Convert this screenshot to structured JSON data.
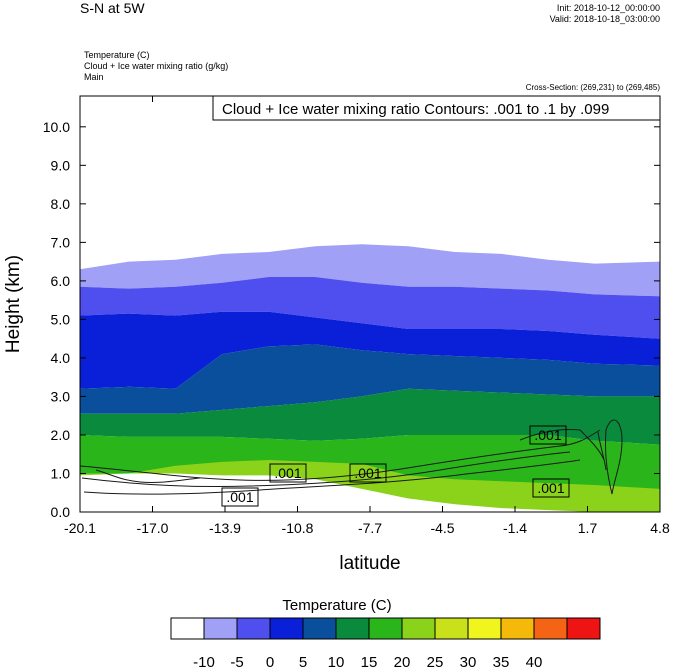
{
  "header": {
    "title": "S-N at 5W",
    "init": "Init: 2018-10-12_00:00:00",
    "valid": "Valid: 2018-10-18_03:00:00",
    "fields": [
      "Temperature   (C)",
      "Cloud + Ice water mixing ratio   (g/kg)",
      "Main"
    ],
    "cross_section": "Cross-Section: (269,231) to (269,485)"
  },
  "chart_data": {
    "type": "area",
    "contour_label_box": "Cloud + Ice water mixing ratio Contours: .001 to .1 by .099",
    "xlabel": "latitude",
    "ylabel": "Height (km)",
    "x_ticks": [
      "-20.1",
      "-17.0",
      "-13.9",
      "-10.8",
      "-7.7",
      "-4.5",
      "-1.4",
      "1.7",
      "4.8"
    ],
    "y_ticks": [
      "0.0",
      "1.0",
      "2.0",
      "3.0",
      "4.0",
      "5.0",
      "6.0",
      "7.0",
      "8.0",
      "9.0",
      "10.0"
    ],
    "xlim": [
      -20.1,
      4.8
    ],
    "ylim": [
      0,
      10.8
    ],
    "x_samples": [
      -20.1,
      -18.0,
      -16.0,
      -14.0,
      -12.0,
      -10.0,
      -8.0,
      -6.0,
      -4.0,
      -2.0,
      0.0,
      2.0,
      4.8
    ],
    "bands": [
      {
        "range": "-10 to -5",
        "color": "#a0a0f7",
        "top": [
          6.3,
          6.5,
          6.55,
          6.7,
          6.75,
          6.9,
          6.95,
          6.9,
          6.75,
          6.7,
          6.55,
          6.45,
          6.5
        ],
        "bottom": [
          5.85,
          5.8,
          5.85,
          5.95,
          6.1,
          6.1,
          5.95,
          5.85,
          5.85,
          5.8,
          5.75,
          5.65,
          5.6
        ]
      },
      {
        "range": "-5 to 0",
        "color": "#4f4fef",
        "top": [
          5.85,
          5.8,
          5.85,
          5.95,
          6.1,
          6.1,
          5.95,
          5.85,
          5.85,
          5.8,
          5.75,
          5.65,
          5.6
        ],
        "bottom": [
          5.1,
          5.15,
          5.1,
          5.2,
          5.2,
          5.05,
          4.9,
          4.75,
          4.75,
          4.75,
          4.7,
          4.6,
          4.5
        ]
      },
      {
        "range": "0 to 5",
        "color": "#0a1fd8",
        "top": [
          5.1,
          5.15,
          5.1,
          5.2,
          5.2,
          5.05,
          4.9,
          4.75,
          4.75,
          4.75,
          4.7,
          4.6,
          4.5
        ],
        "bottom": [
          3.2,
          3.25,
          3.2,
          4.1,
          4.3,
          4.35,
          4.2,
          4.1,
          4.05,
          4.0,
          3.95,
          3.85,
          3.8
        ]
      },
      {
        "range": "5 to 10",
        "color": "#0a4f9c",
        "top": [
          3.2,
          3.25,
          3.2,
          4.1,
          4.3,
          4.35,
          4.2,
          4.1,
          4.05,
          4.0,
          3.95,
          3.85,
          3.8
        ],
        "bottom": [
          2.55,
          2.55,
          2.55,
          2.65,
          2.75,
          2.85,
          3.0,
          3.2,
          3.15,
          3.1,
          3.05,
          3.0,
          3.0
        ]
      },
      {
        "range": "10 to 15",
        "color": "#0a8a3c",
        "top": [
          2.55,
          2.55,
          2.55,
          2.65,
          2.75,
          2.85,
          3.0,
          3.2,
          3.15,
          3.1,
          3.05,
          3.0,
          3.0
        ],
        "bottom": [
          2.0,
          1.95,
          1.95,
          1.95,
          1.9,
          1.85,
          1.9,
          2.0,
          2.0,
          2.0,
          2.0,
          1.85,
          1.75
        ]
      },
      {
        "range": "15 to 20",
        "color": "#2ab51b",
        "top": [
          2.0,
          1.95,
          1.95,
          1.95,
          1.9,
          1.85,
          1.9,
          2.0,
          2.0,
          2.0,
          2.0,
          1.85,
          1.75
        ],
        "bottom": [
          1.0,
          1.0,
          1.1,
          1.15,
          1.2,
          1.15,
          1.1,
          0.9,
          0.75,
          0.7,
          0.6,
          0.5,
          0.3
        ]
      },
      {
        "range": "20 to 25",
        "color": "#8bd31a",
        "top": [
          0.95,
          1.0,
          1.2,
          1.3,
          1.35,
          1.3,
          1.25,
          0.95,
          0.85,
          0.8,
          0.75,
          0.7,
          0.6
        ],
        "bottom": [
          1.0,
          1.0,
          1.0,
          0.95,
          0.95,
          0.85,
          0.6,
          0.35,
          0.2,
          0.1,
          0.05,
          0.0,
          0.0
        ]
      }
    ],
    "contour_labels": [
      ".001",
      ".001",
      ".001",
      ".001",
      ".001"
    ],
    "colorbar": {
      "title": "Temperature  (C)",
      "colors": [
        "#ffffff",
        "#a0a0f7",
        "#4f4fef",
        "#0a1fd8",
        "#0a4f9c",
        "#0a8a3c",
        "#2ab51b",
        "#8bd31a",
        "#c8e11a",
        "#f0f51e",
        "#f5b90a",
        "#f56414",
        "#ef1414"
      ],
      "labels": [
        "-10",
        "-5",
        "0",
        "5",
        "10",
        "15",
        "20",
        "25",
        "30",
        "35",
        "40"
      ]
    }
  }
}
